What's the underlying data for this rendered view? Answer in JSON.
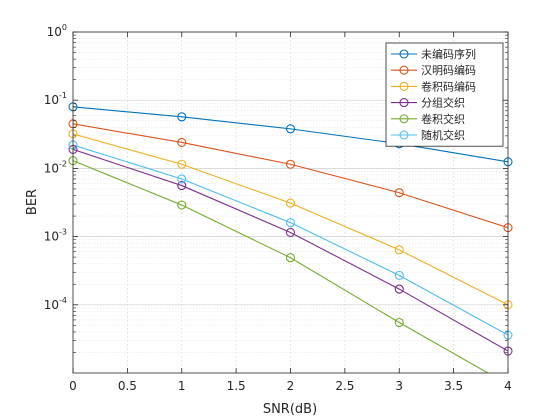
{
  "chart_data": {
    "type": "line",
    "title": "",
    "xlabel": "SNR(dB)",
    "ylabel": "BER",
    "xlim": [
      0,
      4
    ],
    "ylim": [
      1e-05,
      1
    ],
    "yscale": "log",
    "grid": true,
    "minor_grid": true,
    "legend_position": "top-right",
    "x_ticks": [
      "0",
      "0.5",
      "1",
      "1.5",
      "2",
      "2.5",
      "3",
      "3.5",
      "4"
    ],
    "x_tick_values": [
      0,
      0.5,
      1,
      1.5,
      2,
      2.5,
      3,
      3.5,
      4
    ],
    "y_ticks": [
      {
        "base": "10",
        "exp": "0",
        "value": 1
      },
      {
        "base": "10",
        "exp": "-1",
        "value": 0.1
      },
      {
        "base": "10",
        "exp": "-2",
        "value": 0.01
      },
      {
        "base": "10",
        "exp": "-3",
        "value": 0.001
      },
      {
        "base": "10",
        "exp": "-4",
        "value": 0.0001
      }
    ],
    "x": [
      0,
      1,
      2,
      3,
      4
    ],
    "series": [
      {
        "name": "未编码序列",
        "color": "#0072BD",
        "values": [
          0.08,
          0.057,
          0.038,
          0.023,
          0.0125
        ]
      },
      {
        "name": "汉明码编码",
        "color": "#D95319",
        "values": [
          0.045,
          0.024,
          0.0115,
          0.0044,
          0.00135
        ]
      },
      {
        "name": "卷积码编码",
        "color": "#EDB120",
        "values": [
          0.032,
          0.0115,
          0.0031,
          0.00064,
          0.0001
        ]
      },
      {
        "name": "分组交织",
        "color": "#7E2F8E",
        "values": [
          0.019,
          0.0056,
          0.00115,
          0.00017,
          2.1e-05
        ]
      },
      {
        "name": "卷积交织",
        "color": "#77AC30",
        "values": [
          0.013,
          0.0029,
          0.00049,
          5.5e-05,
          6.8e-06
        ]
      },
      {
        "name": "随机交织",
        "color": "#4DBEEE",
        "values": [
          0.022,
          0.007,
          0.0016,
          0.00027,
          3.6e-05
        ]
      }
    ]
  }
}
